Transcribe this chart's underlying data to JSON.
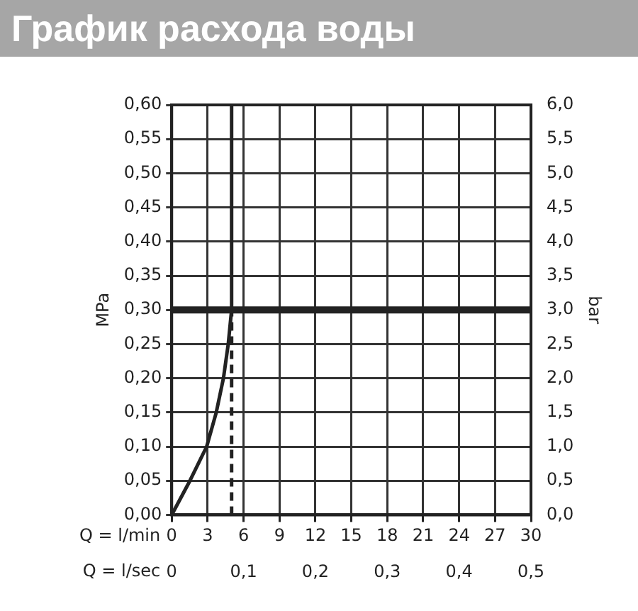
{
  "chart_data": {
    "type": "line",
    "title": "График расхода воды",
    "xlabel": "Q = l/min",
    "x2label": "Q = l/sec",
    "ylabel": "MPa",
    "y2label": "bar",
    "xlim": [
      0,
      30
    ],
    "xticks": [
      0,
      3,
      6,
      9,
      12,
      15,
      18,
      21,
      24,
      27,
      30
    ],
    "x2lim": [
      0,
      0.5
    ],
    "x2ticks": [
      0,
      {
        "value": 0.1,
        "label": "0,1"
      },
      {
        "value": 0.2,
        "label": "0,2"
      },
      {
        "value": 0.3,
        "label": "0,3"
      },
      {
        "value": 0.4,
        "label": "0,4"
      },
      {
        "value": 0.5,
        "label": "0,5"
      }
    ],
    "ylim": [
      0,
      0.6
    ],
    "yticks": [
      {
        "value": 0,
        "label": "0,00"
      },
      {
        "value": 0.05,
        "label": "0,05"
      },
      {
        "value": 0.1,
        "label": "0,10"
      },
      {
        "value": 0.15,
        "label": "0,15"
      },
      {
        "value": 0.2,
        "label": "0,20"
      },
      {
        "value": 0.25,
        "label": "0,25"
      },
      {
        "value": 0.3,
        "label": "0,30"
      },
      {
        "value": 0.35,
        "label": "0,35"
      },
      {
        "value": 0.4,
        "label": "0,40"
      },
      {
        "value": 0.45,
        "label": "0,45"
      },
      {
        "value": 0.5,
        "label": "0,50"
      },
      {
        "value": 0.55,
        "label": "0,55"
      },
      {
        "value": 0.6,
        "label": "0,60"
      }
    ],
    "y2lim": [
      0,
      6
    ],
    "y2ticks": [
      {
        "value": 0,
        "label": "0,0"
      },
      {
        "value": 0.5,
        "label": "0,5"
      },
      {
        "value": 1,
        "label": "1,0"
      },
      {
        "value": 1.5,
        "label": "1,5"
      },
      {
        "value": 2,
        "label": "2,0"
      },
      {
        "value": 2.5,
        "label": "2,5"
      },
      {
        "value": 3,
        "label": "3,0"
      },
      {
        "value": 3.5,
        "label": "3,5"
      },
      {
        "value": 4,
        "label": "4,0"
      },
      {
        "value": 4.5,
        "label": "4,5"
      },
      {
        "value": 5,
        "label": "5,0"
      },
      {
        "value": 5.5,
        "label": "5,5"
      },
      {
        "value": 6,
        "label": "6,0"
      }
    ],
    "series": [
      {
        "color": "#222222",
        "x": [
          0,
          1.52,
          2.92,
          3.72,
          4.32,
          4.72,
          5.0,
          5.0
        ],
        "values": [
          0,
          0.05,
          0.1,
          0.15,
          0.2,
          0.25,
          0.3,
          0.6
        ]
      },
      {
        "color": "#222222",
        "line_style": "dashed",
        "x": [
          5,
          5
        ],
        "values": [
          0,
          0.3
        ]
      }
    ],
    "ref_lines": [
      {
        "axis": "y",
        "value": 0.3,
        "color": "#222222"
      }
    ],
    "grid": true,
    "legend": false,
    "marker": "none"
  }
}
